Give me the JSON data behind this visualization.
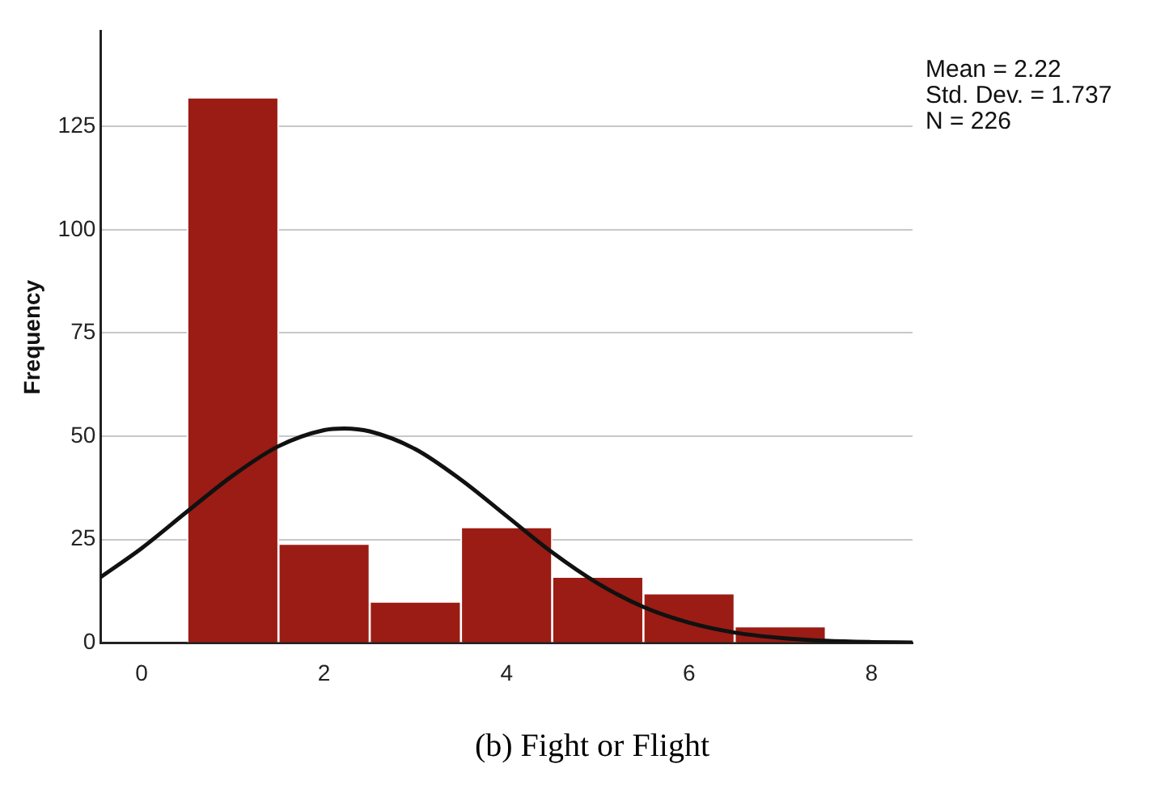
{
  "chart_data": {
    "type": "histogram",
    "title": "(b) Fight or Flight",
    "ylabel": "Frequency",
    "bins": [
      0.5,
      1.5,
      2.5,
      3.5,
      4.5,
      5.5,
      6.5,
      7.5
    ],
    "values": [
      132,
      24,
      10,
      28,
      16,
      12,
      4
    ],
    "color": "#9b1c14",
    "series": [
      {
        "type": "line",
        "color": "#111111",
        "x": [
          -0.45,
          0,
          0.5,
          1,
          1.5,
          2,
          2.22,
          2.5,
          3,
          3.5,
          4,
          4.5,
          5,
          5.5,
          6,
          6.5,
          7,
          7.5,
          8,
          8.45
        ],
        "values": [
          15.9,
          22.9,
          31.8,
          40.5,
          47.6,
          51.5,
          51.9,
          51.2,
          46.9,
          39.5,
          30.7,
          21.9,
          14.4,
          8.7,
          4.9,
          2.5,
          1.2,
          0.5,
          0.2,
          0.1
        ]
      }
    ],
    "annotations": [
      "Mean = 2.22",
      "Std. Dev. = 1.737",
      "N = 226"
    ],
    "xlim": [
      -0.45,
      8.45
    ],
    "xticks": [
      0,
      2,
      4,
      6,
      8
    ],
    "ylim": [
      0,
      148
    ],
    "yticks": [
      0,
      25,
      50,
      75,
      100,
      125
    ],
    "grid": "y",
    "legend": false
  }
}
